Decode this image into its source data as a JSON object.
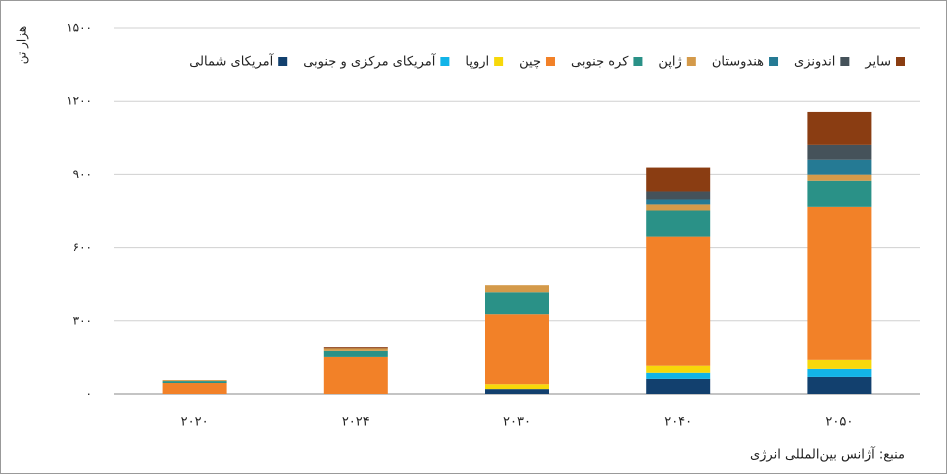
{
  "chart_data": {
    "type": "stacked_bar",
    "y_label": "هزار تن",
    "source": "منبع: آژانس بین‌المللی انرژی",
    "categories": [
      "۲۰۲۰",
      "۲۰۲۴",
      "۲۰۳۰",
      "۲۰۴۰",
      "۲۰۵۰"
    ],
    "series": [
      {
        "name": "آمریکای شمالی",
        "color": "#12406e",
        "values": [
          0,
          0,
          20,
          62,
          70
        ]
      },
      {
        "name": "آمریکای مرکزی و جنوبی",
        "color": "#12b4e8",
        "values": [
          0,
          0,
          0,
          25,
          33
        ]
      },
      {
        "name": "اروپا",
        "color": "#f7d80a",
        "values": [
          0,
          0,
          20,
          29,
          37
        ]
      },
      {
        "name": "چین",
        "color": "#f28128",
        "values": [
          45,
          152,
          287,
          529,
          627
        ]
      },
      {
        "name": "کره جنوبی",
        "color": "#2a9187",
        "values": [
          8,
          25,
          90,
          107,
          107
        ]
      },
      {
        "name": "ژاپن",
        "color": "#d49a4a",
        "values": [
          4,
          10,
          29,
          25,
          25
        ]
      },
      {
        "name": "هندوستان",
        "color": "#257a94",
        "values": [
          0,
          0,
          0,
          20,
          61
        ]
      },
      {
        "name": "اندونزی",
        "color": "#45525a",
        "values": [
          0,
          0,
          0,
          33,
          61
        ]
      },
      {
        "name": "سایر",
        "color": "#8a3d12",
        "values": [
          0,
          5,
          0,
          98,
          135
        ]
      }
    ],
    "ylim": [
      0,
      1500
    ],
    "yticks": [
      {
        "value": 0,
        "label": "۰"
      },
      {
        "value": 300,
        "label": "۳۰۰"
      },
      {
        "value": 600,
        "label": "۶۰۰"
      },
      {
        "value": 900,
        "label": "۹۰۰"
      },
      {
        "value": 1200,
        "label": "۱۲۰۰"
      },
      {
        "value": 1500,
        "label": "۱۵۰۰"
      }
    ],
    "grid": true
  }
}
